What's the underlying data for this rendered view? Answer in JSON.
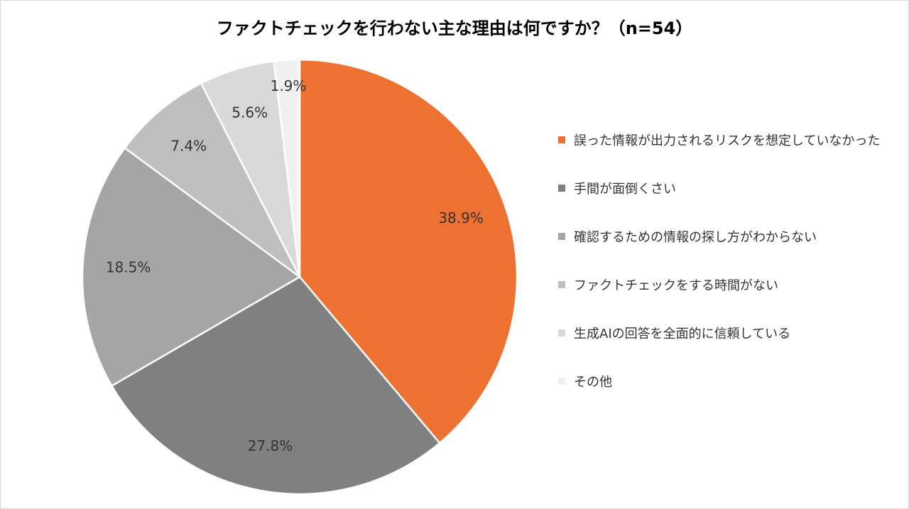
{
  "chart_data": {
    "type": "pie",
    "title": "ファクトチェックを行わない主な理由は何ですか？（n=54）",
    "categories": [
      "誤った情報が出力されるリスクを想定していなかった",
      "手間が面倒くさい",
      "確認するための情報の探し方がわからない",
      "ファクトチェックをする時間がない",
      "生成AIの回答を全面的に信頼している",
      "その他"
    ],
    "values": [
      38.9,
      27.8,
      18.5,
      7.4,
      5.6,
      1.9
    ],
    "value_labels": [
      "38.9%",
      "27.8%",
      "18.5%",
      "7.4%",
      "5.6%",
      "1.9%"
    ],
    "colors": [
      "#ED7231",
      "#808080",
      "#A5A5A5",
      "#BFBFBF",
      "#D9D9D9",
      "#F0F0F0"
    ],
    "legend_position": "right",
    "start_angle": "12 o'clock",
    "direction": "clockwise"
  }
}
